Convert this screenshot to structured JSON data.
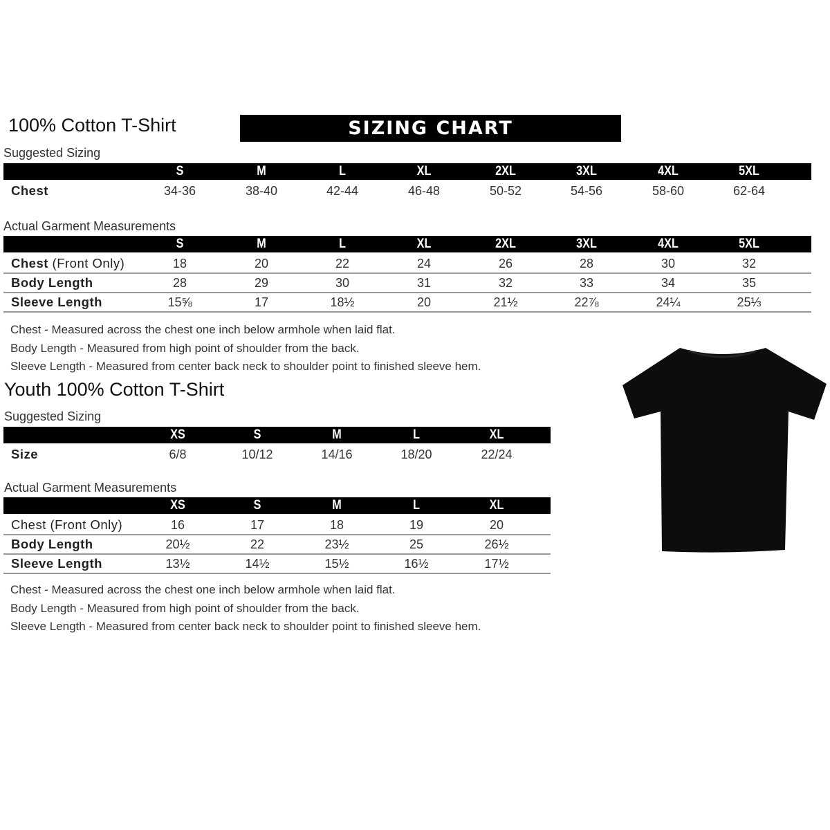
{
  "adult": {
    "title": "100% Cotton T-Shirt",
    "banner": "SIZING CHART",
    "suggested_label": "Suggested Sizing",
    "sizes": [
      "S",
      "M",
      "L",
      "XL",
      "2XL",
      "3XL",
      "4XL",
      "5XL"
    ],
    "suggested_rows": [
      {
        "label": "Chest",
        "values": [
          "34-36",
          "38-40",
          "42-44",
          "46-48",
          "50-52",
          "54-56",
          "58-60",
          "62-64"
        ]
      }
    ],
    "actual_label": "Actual Garment Measurements",
    "actual_rows": [
      {
        "label": "Chest",
        "label_suffix": "(Front Only)",
        "values": [
          "18",
          "20",
          "22",
          "24",
          "26",
          "28",
          "30",
          "32"
        ]
      },
      {
        "label": "Body Length",
        "label_suffix": "",
        "values": [
          "28",
          "29",
          "30",
          "31",
          "32",
          "33",
          "34",
          "35"
        ]
      },
      {
        "label": "Sleeve Length",
        "label_suffix": "",
        "values": [
          "15⅝",
          "17",
          "18½",
          "20",
          "21½",
          "22⅞",
          "24¼",
          "25⅓"
        ]
      }
    ],
    "notes": [
      "Chest - Measured across the chest one inch below armhole when laid flat.",
      "Body Length - Measured from high point of shoulder from the back.",
      "Sleeve Length - Measured from center back neck to shoulder point to finished sleeve hem."
    ]
  },
  "youth": {
    "title": "Youth 100% Cotton T-Shirt",
    "suggested_label": "Suggested Sizing",
    "sizes": [
      "XS",
      "S",
      "M",
      "L",
      "XL"
    ],
    "suggested_rows": [
      {
        "label": "Size",
        "values": [
          "6/8",
          "10/12",
          "14/16",
          "18/20",
          "22/24"
        ]
      }
    ],
    "actual_label": "Actual Garment Measurements",
    "actual_rows": [
      {
        "label": "Chest (Front Only)",
        "values": [
          "16",
          "17",
          "18",
          "19",
          "20"
        ]
      },
      {
        "label": "Body Length",
        "values": [
          "20½",
          "22",
          "23½",
          "25",
          "26½"
        ]
      },
      {
        "label": "Sleeve Length",
        "values": [
          "13½",
          "14½",
          "15½",
          "16½",
          "17½"
        ]
      }
    ],
    "notes": [
      "Chest - Measured across the chest one inch below armhole when laid flat.",
      "Body Length - Measured from high point of shoulder from the back.",
      "Sleeve Length - Measured from center back neck to shoulder point to finished sleeve hem."
    ]
  },
  "image": {
    "icon": "t-shirt-icon",
    "color": "#0d0d0d"
  }
}
